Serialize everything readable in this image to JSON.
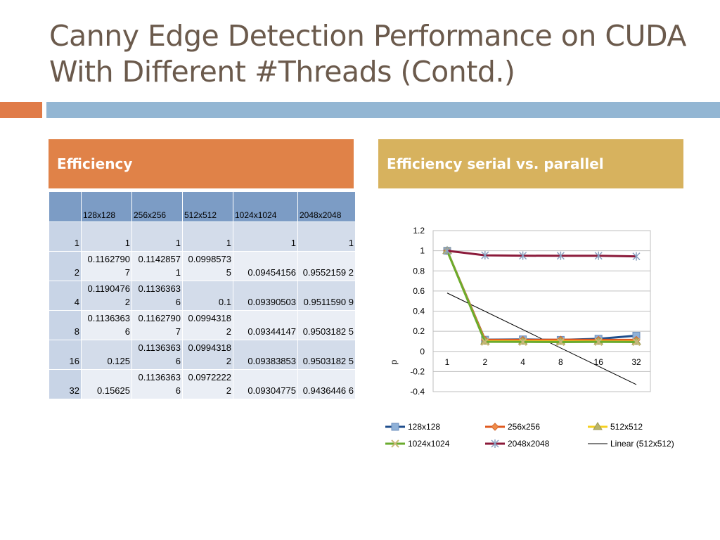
{
  "title": "Canny Edge Detection Performance on CUDA With Different #Threads (Contd.)",
  "left_box": {
    "label": "Efficiency"
  },
  "right_box": {
    "label": "Efficiency serial vs. parallel"
  },
  "table": {
    "headers": [
      "",
      "128x128",
      "256x256",
      "512x512",
      "1024x1024",
      "2048x2048"
    ],
    "rows": [
      [
        "1",
        "1",
        "1",
        "1",
        "1",
        "1"
      ],
      [
        "2",
        "0.11627907",
        "0.11428571",
        "0.09985735",
        "0.09454156",
        "0.9552159 2"
      ],
      [
        "4",
        "0.11904762",
        "0.11363636",
        "0.1",
        "0.09390503",
        "0.9511590 9"
      ],
      [
        "8",
        "0.11363636",
        "0.11627907",
        "0.09943182",
        "0.09344147",
        "0.9503182 5"
      ],
      [
        "16",
        "0.125",
        "0.11363636",
        "0.09943182",
        "0.09383853",
        "0.9503182 5"
      ],
      [
        "32",
        "0.15625",
        "0.11363636",
        "0.09722222",
        "0.09304775",
        "0.9436446 6"
      ]
    ]
  },
  "chart_data": {
    "type": "line",
    "categories": [
      "1",
      "2",
      "4",
      "8",
      "16",
      "32"
    ],
    "ylim": [
      -0.4,
      1.2
    ],
    "yticks": [
      "1.2",
      "1",
      "0.8",
      "0.6",
      "0.4",
      "0.2",
      "0",
      "-0.2",
      "-0.4"
    ],
    "ylabel": "p",
    "xlabel": "",
    "grid": true,
    "legend_position": "bottom",
    "series": [
      {
        "name": "128x128",
        "color": "#1f4e8c",
        "marker": "square",
        "values": [
          1,
          0.116,
          0.119,
          0.114,
          0.125,
          0.156
        ]
      },
      {
        "name": "256x256",
        "color": "#e05a20",
        "marker": "diamond",
        "values": [
          1,
          0.114,
          0.114,
          0.116,
          0.114,
          0.114
        ]
      },
      {
        "name": "512x512",
        "color": "#f5d020",
        "marker": "triangle",
        "values": [
          1,
          0.1,
          0.1,
          0.099,
          0.099,
          0.097
        ]
      },
      {
        "name": "1024x1024",
        "color": "#6aab2e",
        "marker": "x",
        "values": [
          1,
          0.095,
          0.094,
          0.093,
          0.094,
          0.093
        ]
      },
      {
        "name": "2048x2048",
        "color": "#8b1a3a",
        "marker": "star",
        "values": [
          1,
          0.955,
          0.951,
          0.95,
          0.95,
          0.944
        ]
      }
    ],
    "trendline": {
      "name": "Linear (512x512)",
      "color": "#000000",
      "start": 0.58,
      "end": -0.33
    }
  }
}
